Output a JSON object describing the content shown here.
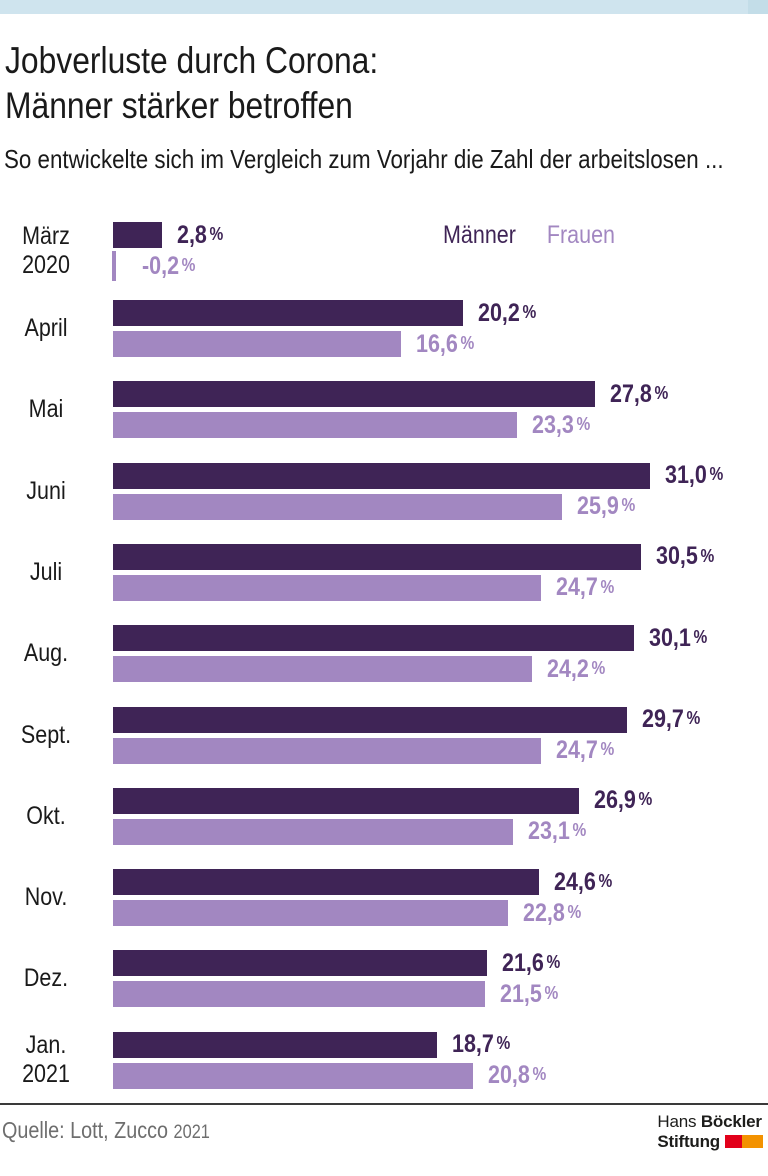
{
  "page": {
    "background": "#FFFFFF",
    "accent_strip_color": "#CFE4EE",
    "accent_strip_end_color": "#C3DDE8"
  },
  "header": {
    "title_line1": "Jobverluste durch Corona:",
    "title_line2": "Männer stärker betroffen",
    "subtitle": "So entwickelte sich im Vergleich zum Vorjahr die Zahl der arbeitslosen ..."
  },
  "chart_data": {
    "type": "bar",
    "orientation": "horizontal",
    "unit": "%",
    "xlim": [
      0,
      31
    ],
    "grid": false,
    "legend_position": "top-right",
    "categories": [
      [
        "März",
        "2020"
      ],
      [
        "April"
      ],
      [
        "Mai"
      ],
      [
        "Juni"
      ],
      [
        "Juli"
      ],
      [
        "Aug."
      ],
      [
        "Sept."
      ],
      [
        "Okt."
      ],
      [
        "Nov."
      ],
      [
        "Dez."
      ],
      [
        "Jan.",
        "2021"
      ]
    ],
    "series": [
      {
        "name": "Männer",
        "color": "#3F2456",
        "values": [
          2.8,
          20.2,
          27.8,
          31.0,
          30.5,
          30.1,
          29.7,
          26.9,
          24.6,
          21.6,
          18.7
        ],
        "labels": [
          "2,8",
          "20,2",
          "27,8",
          "31,0",
          "30,5",
          "30,1",
          "29,7",
          "26,9",
          "24,6",
          "21,6",
          "18,7"
        ]
      },
      {
        "name": "Frauen",
        "color": "#A287C1",
        "values": [
          -0.2,
          16.6,
          23.3,
          25.9,
          24.7,
          24.2,
          24.7,
          23.1,
          22.8,
          21.5,
          20.8
        ],
        "labels": [
          "-0,2",
          "16,6",
          "23,3",
          "25,9",
          "24,7",
          "24,2",
          "24,7",
          "23,1",
          "22,8",
          "21,5",
          "20,8"
        ]
      }
    ]
  },
  "footer": {
    "source_prefix": "Quelle: Lott, Zucco",
    "source_year": "2021",
    "logo": {
      "line1_regular": "Hans",
      "line1_bold": "Böckler",
      "line2_bold": "Stiftung",
      "flag_red": "#E2001A",
      "flag_orange": "#F39200"
    }
  }
}
